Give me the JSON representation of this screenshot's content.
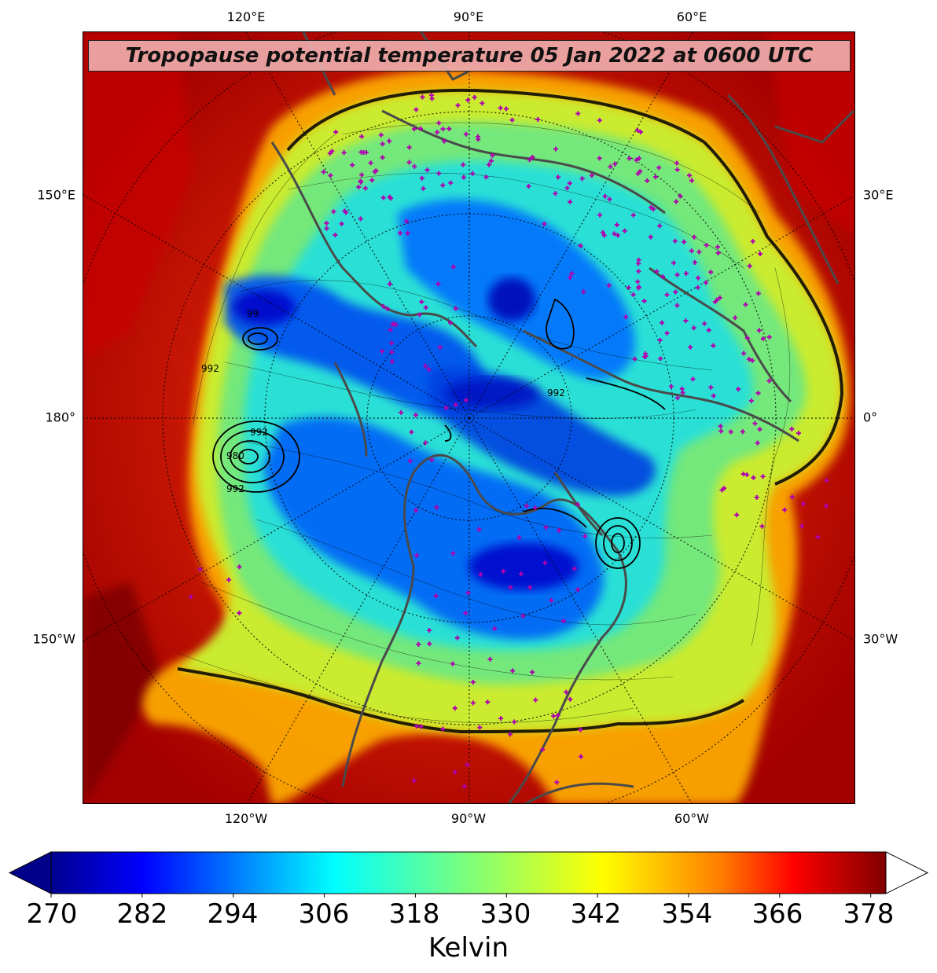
{
  "title": "Tropopause potential temperature 05 Jan 2022 at 0600 UTC",
  "longitude_labels": {
    "top": [
      "120°E",
      "90°E",
      "60°E"
    ],
    "bottom": [
      "120°W",
      "90°W",
      "60°W"
    ],
    "left": [
      "150°E",
      "180°",
      "150°W"
    ],
    "right": [
      "30°E",
      "0°",
      "30°W"
    ]
  },
  "pressure_contour_labels": [
    "99",
    "992",
    "992",
    "980",
    "992",
    "992"
  ],
  "colorbar": {
    "unit": "Kelvin",
    "ticks": [
      "270",
      "282",
      "294",
      "306",
      "318",
      "330",
      "342",
      "354",
      "366",
      "378"
    ],
    "min": 270,
    "max": 380,
    "extend": "both",
    "upper_extension_color": "#ffffff",
    "lower_extension_color": "#00008b"
  },
  "colors": {
    "background_hot": "#8b0000",
    "cold_core": "#0000c8",
    "station_marker": "#b000b0",
    "coastline": "#4a4a4a"
  }
}
